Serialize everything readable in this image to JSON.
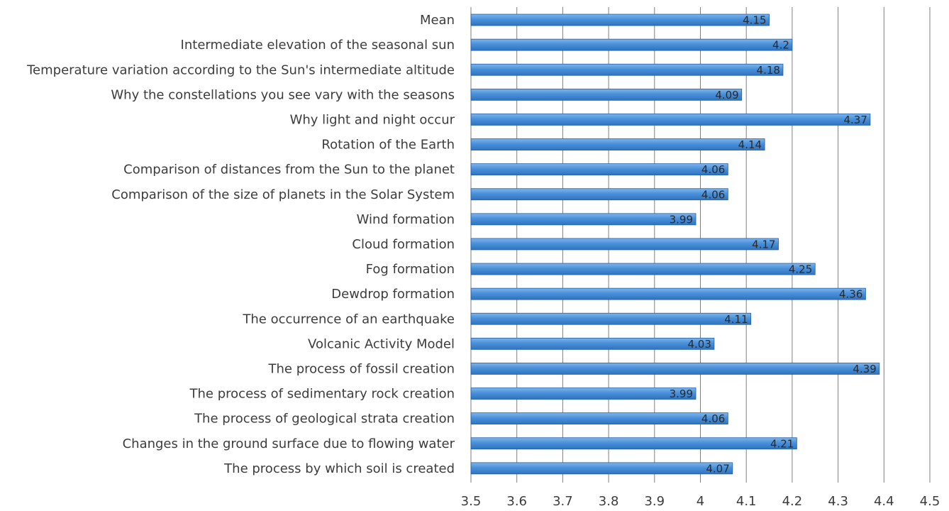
{
  "chart_data": {
    "type": "bar",
    "orientation": "horizontal",
    "categories": [
      "Mean",
      "Intermediate elevation of the seasonal sun",
      "Temperature variation according to the Sun's intermediate altitude",
      "Why the constellations you see vary with the seasons",
      "Why light and night occur",
      "Rotation of the Earth",
      "Comparison of distances from the Sun to the planet",
      "Comparison of the size of planets in the Solar System",
      "Wind formation",
      "Cloud formation",
      "Fog formation ",
      "Dewdrop formation",
      "The occurrence of an earthquake",
      "Volcanic Activity Model",
      "The process of fossil creation",
      "The process of sedimentary rock creation",
      "The process of geological strata creation",
      "Changes in the ground surface due to flowing water",
      "The process by which soil is created"
    ],
    "values": [
      4.15,
      4.2,
      4.18,
      4.09,
      4.37,
      4.14,
      4.06,
      4.06,
      3.99,
      4.17,
      4.25,
      4.36,
      4.11,
      4.03,
      4.39,
      3.99,
      4.06,
      4.21,
      4.07
    ],
    "data_labels": [
      "4.15",
      "4.2",
      "4.18",
      "4.09",
      "4.37",
      "4.14",
      "4.06",
      "4.06",
      "3.99",
      "4.17",
      "4.25",
      "4.36",
      "4.11",
      "4.03",
      "4.39",
      "3.99",
      "4.06",
      "4.21",
      "4.07"
    ],
    "xlim": [
      3.5,
      4.5
    ],
    "ticks": [
      3.5,
      3.6,
      3.7,
      3.8,
      3.9,
      4,
      4.1,
      4.2,
      4.3,
      4.4,
      4.5
    ],
    "tick_labels": [
      "3.5",
      "3.6",
      "3.7",
      "3.8",
      "3.9",
      "4",
      "4.1",
      "4.2",
      "4.3",
      "4.4",
      "4.5"
    ],
    "grid": "vertical",
    "legend": "none",
    "title": "",
    "xlabel": "",
    "ylabel": "",
    "colors": {
      "bar": "#4a90d9",
      "bar_edge": "#1f5fa8",
      "grid": "#7f7f7f",
      "text": "#3c3c3c"
    }
  }
}
